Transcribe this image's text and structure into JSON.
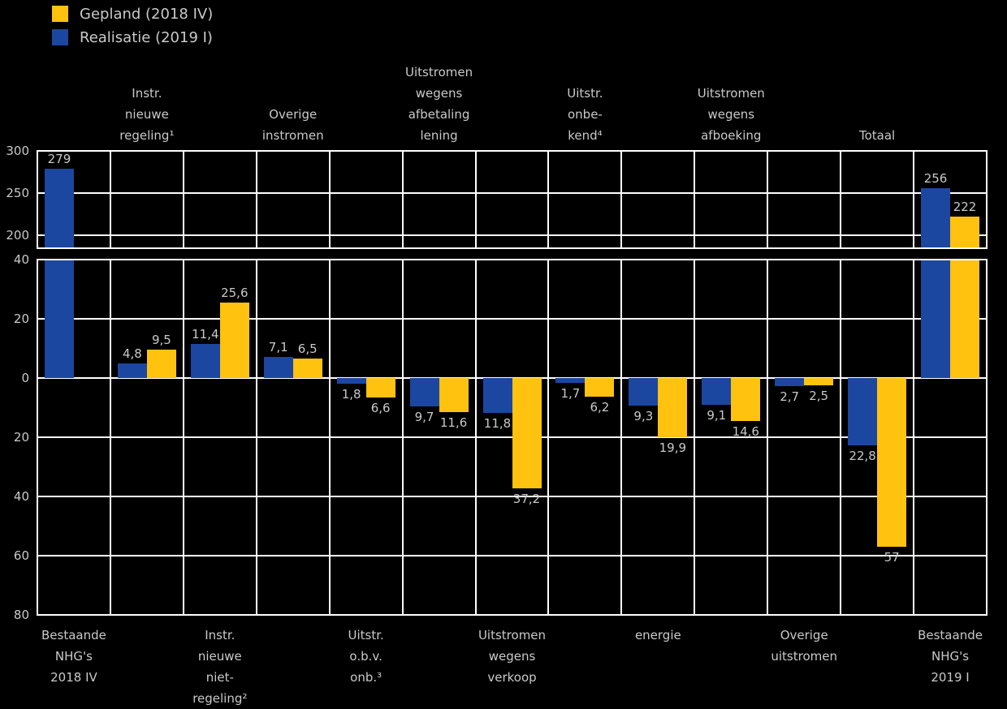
{
  "background_color": "#000000",
  "grid_color": "#FFFFFF",
  "text_color": "#C9C9C9",
  "legend": {
    "items": [
      {
        "label": "Gepland (2018 IV)",
        "color": "#FFC20E",
        "series": "gepland"
      },
      {
        "label": "Realisatie (2019 I)",
        "color": "#1C47A0",
        "series": "realisatie"
      }
    ]
  },
  "chart_data": {
    "type": "bar",
    "title": "",
    "broken_y_axis": true,
    "series": [
      {
        "name": "Realisatie (2019 I)",
        "color": "#1C47A0",
        "values": [
          279,
          4.8,
          11.4,
          7.1,
          -1.8,
          -9.7,
          -11.8,
          -1.7,
          -9.3,
          -9.1,
          -2.7,
          -22.8,
          256
        ]
      },
      {
        "name": "Gepland (2018 IV)",
        "color": "#FFC20E",
        "values": [
          null,
          9.5,
          25.6,
          6.5,
          -6.6,
          -11.6,
          -37.2,
          -6.2,
          -19.9,
          -14.6,
          -2.5,
          -57,
          222
        ]
      }
    ],
    "labels_realisatie": [
      "279",
      "4,8",
      "11,4",
      "7,1",
      "1,8",
      "9,7",
      "11,8",
      "1,7",
      "9,3",
      "9,1",
      "2,7",
      "22,8",
      "256"
    ],
    "labels_gepland": [
      null,
      "9,5",
      "25,6",
      "6,5",
      "6,6",
      "11,6",
      "37,2",
      "6,2",
      "19,9",
      "14,6",
      "2,5",
      "57",
      "222"
    ],
    "categories": [
      {
        "label_lines": [
          "Bestaande",
          "NHG's",
          "2018 IV"
        ],
        "label_position": "bottom"
      },
      {
        "label_lines": [
          "Instr.",
          "nieuwe",
          "regeling¹"
        ],
        "label_position": "top"
      },
      {
        "label_lines": [
          "Instr.",
          "nieuwe",
          "niet-",
          "regeling²"
        ],
        "label_position": "bottom"
      },
      {
        "label_lines": [
          "Overige",
          "instromen"
        ],
        "label_position": "top"
      },
      {
        "label_lines": [
          "Uitstr.",
          "o.b.v.",
          "onb.³"
        ],
        "label_position": "bottom"
      },
      {
        "label_lines": [
          "Uitstromen",
          "wegens",
          "afbetaling",
          "lening"
        ],
        "label_position": "top"
      },
      {
        "label_lines": [
          "Uitstromen",
          "wegens",
          "verkoop"
        ],
        "label_position": "bottom"
      },
      {
        "label_lines": [
          "Uitstr.",
          "onbe-",
          "kend⁴"
        ],
        "label_position": "top"
      },
      {
        "label_lines": [
          "energie"
        ],
        "label_position": "bottom"
      },
      {
        "label_lines": [
          "Uitstromen",
          "wegens",
          "afboeking"
        ],
        "label_position": "top"
      },
      {
        "label_lines": [
          "Overige",
          "uitstromen"
        ],
        "label_position": "bottom"
      },
      {
        "label_lines": [
          "Totaal"
        ],
        "label_position": "top"
      },
      {
        "label_lines": [
          "Bestaande",
          "NHG's",
          "2019 I"
        ],
        "label_position": "bottom"
      }
    ],
    "y_axis": {
      "top_panel": {
        "range": [
          200,
          300
        ],
        "ticks": [
          300,
          250,
          200
        ],
        "tick_labels": [
          "300",
          "250",
          "200"
        ]
      },
      "bottom_panel": {
        "range": [
          -80,
          40
        ],
        "ticks": [
          40,
          20,
          0,
          -20,
          -40,
          -60,
          -80
        ],
        "tick_labels": [
          "40",
          "20",
          "0",
          "20",
          "40",
          "60",
          "80"
        ]
      }
    },
    "grid": true,
    "legend_position": "top-left"
  }
}
